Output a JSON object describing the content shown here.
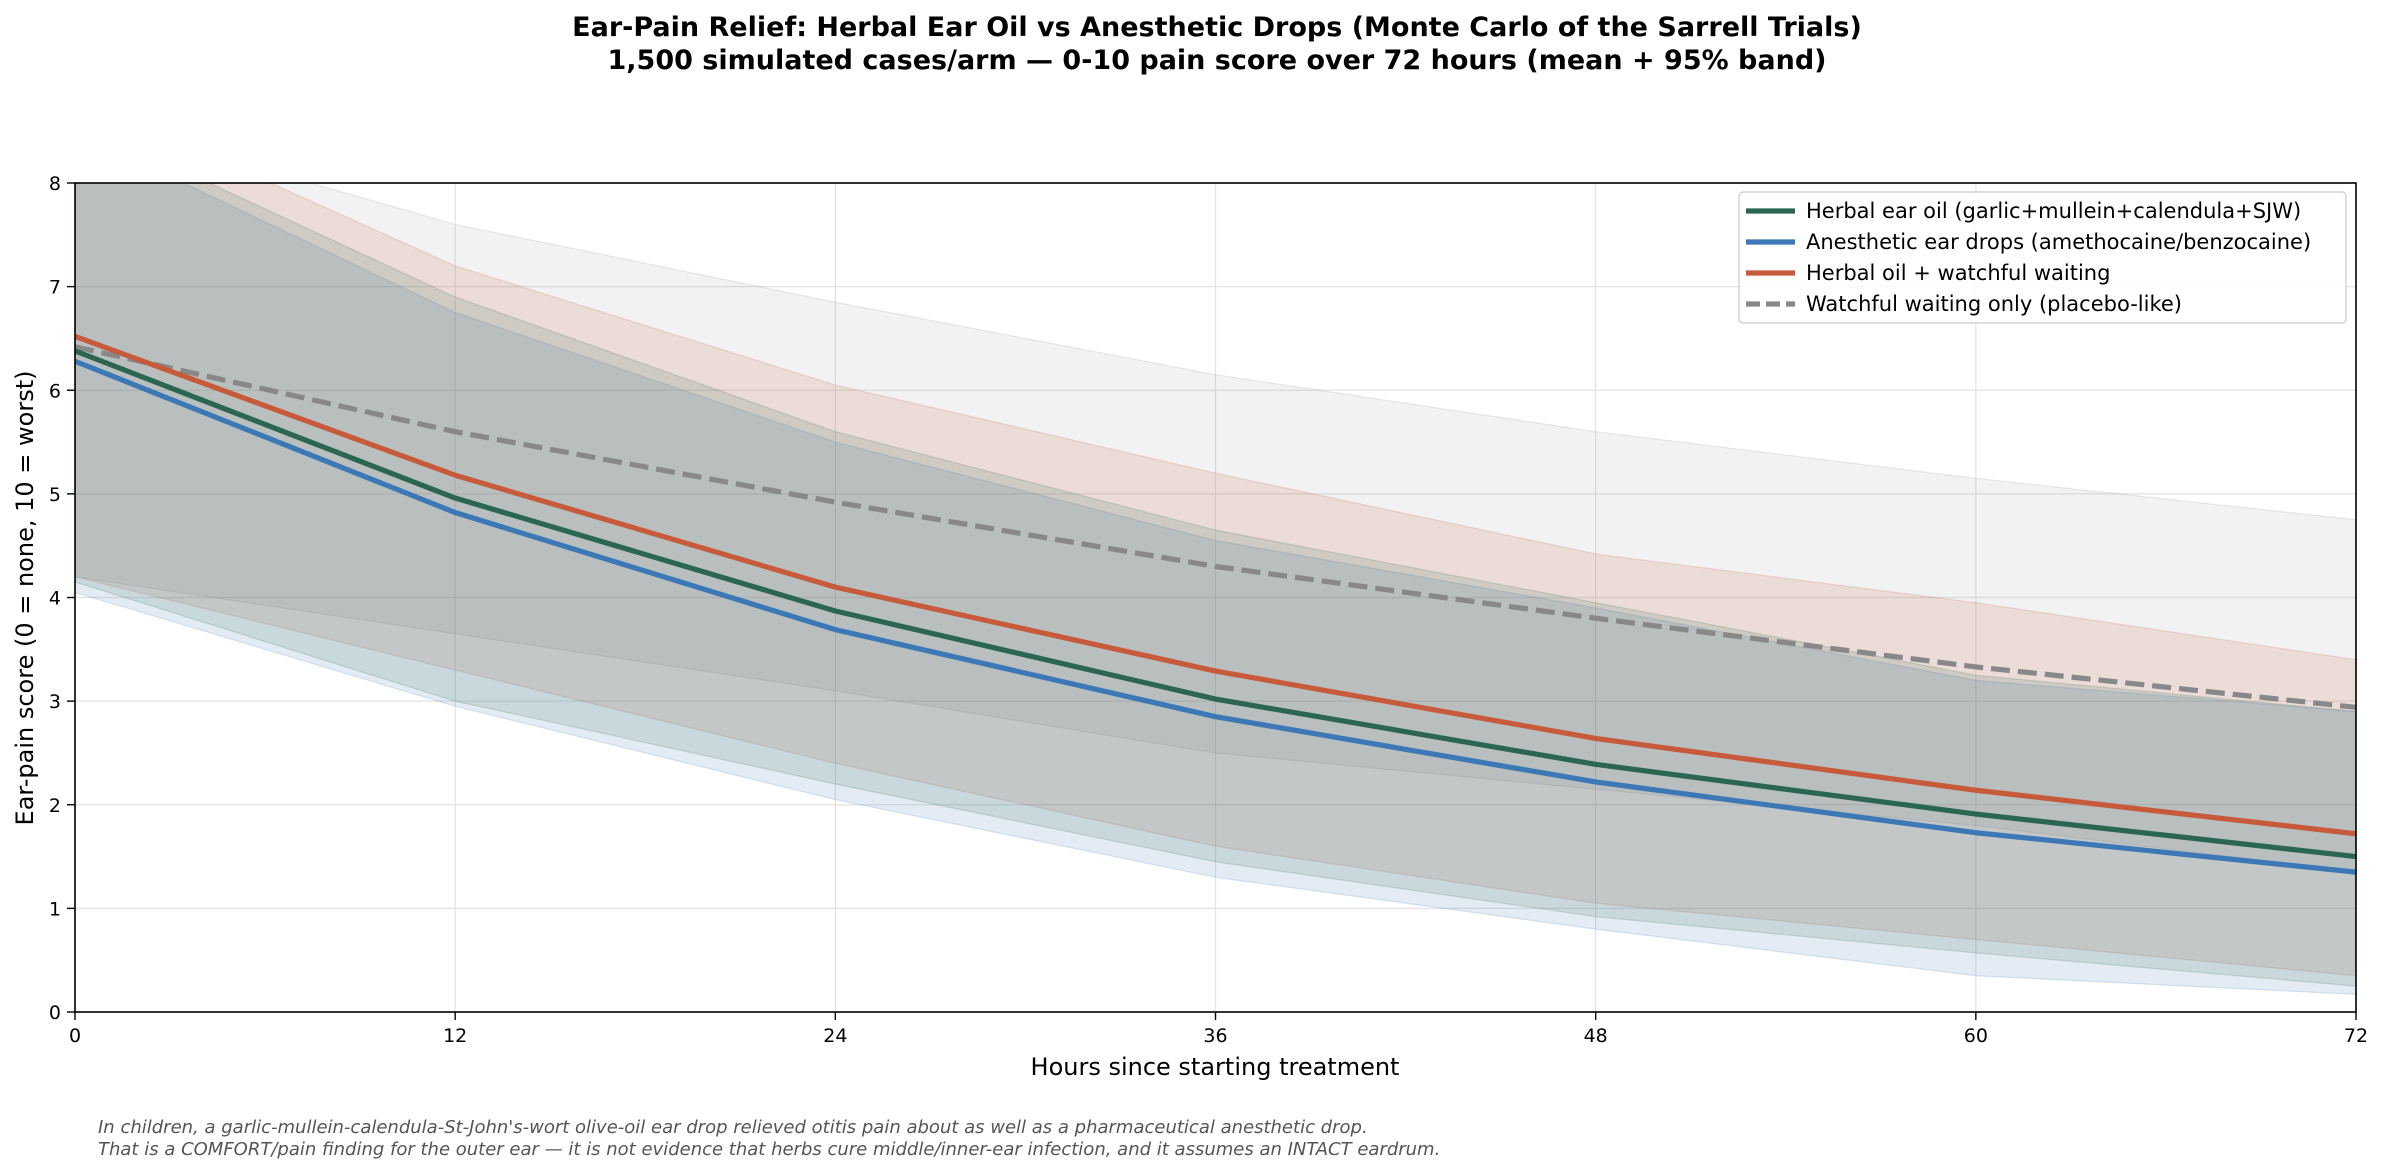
{
  "chart_data": {
    "type": "line",
    "title": "Ear-Pain Relief: Herbal Ear Oil vs Anesthetic Drops (Monte Carlo of the Sarrell Trials)",
    "subtitle": "1,500 simulated cases/arm — 0-10 pain score over 72 hours (mean + 95% band)",
    "xlabel": "Hours since starting treatment",
    "ylabel": "Ear-pain score (0 = none, 10 = worst)",
    "xlim": [
      0,
      72
    ],
    "ylim": [
      0,
      8
    ],
    "x_ticks": [
      0,
      12,
      24,
      36,
      48,
      60,
      72
    ],
    "y_ticks": [
      0,
      1,
      2,
      3,
      4,
      5,
      6,
      7,
      8
    ],
    "grid": true,
    "legend_position": "top-right",
    "x": [
      0,
      12,
      24,
      36,
      48,
      60,
      72
    ],
    "series": [
      {
        "name": "Herbal ear oil (garlic+mullein+calendula+SJW)",
        "color": "#2b6650",
        "dash": false,
        "values": [
          6.38,
          4.96,
          3.87,
          3.02,
          2.39,
          1.91,
          1.5
        ],
        "band_low": [
          4.15,
          3.0,
          2.2,
          1.45,
          0.92,
          0.57,
          0.25
        ],
        "band_high": [
          8.6,
          6.9,
          5.6,
          4.65,
          3.95,
          3.25,
          2.9
        ]
      },
      {
        "name": "Anesthetic ear drops (amethocaine/benzocaine)",
        "color": "#3b78b5",
        "dash": false,
        "values": [
          6.28,
          4.82,
          3.69,
          2.85,
          2.22,
          1.73,
          1.35
        ],
        "band_low": [
          4.05,
          2.95,
          2.05,
          1.3,
          0.8,
          0.35,
          0.17
        ],
        "band_high": [
          8.5,
          6.75,
          5.5,
          4.55,
          3.9,
          3.2,
          2.9
        ]
      },
      {
        "name": "Herbal oil + watchful waiting",
        "color": "#c65a3a",
        "dash": false,
        "values": [
          6.52,
          5.18,
          4.1,
          3.29,
          2.64,
          2.14,
          1.72
        ],
        "band_low": [
          4.2,
          3.3,
          2.4,
          1.6,
          1.05,
          0.7,
          0.35
        ],
        "band_high": [
          8.85,
          7.2,
          6.05,
          5.2,
          4.42,
          3.95,
          3.4
        ]
      },
      {
        "name": "Watchful waiting only (placebo-like)",
        "color": "#888888",
        "dash": true,
        "values": [
          6.42,
          5.6,
          4.92,
          4.3,
          3.8,
          3.33,
          2.94
        ],
        "band_low": [
          4.2,
          3.65,
          3.1,
          2.5,
          2.15,
          1.8,
          1.35
        ],
        "band_high": [
          8.65,
          7.6,
          6.85,
          6.15,
          5.6,
          5.15,
          4.75
        ]
      }
    ]
  },
  "notes": {
    "line1": "In children, a garlic-mullein-calendula-St-John's-wort olive-oil ear drop relieved otitis pain about as well as a pharmaceutical anesthetic drop.",
    "line2": "That is a COMFORT/pain finding for the outer ear — it is not evidence that herbs cure middle/inner-ear infection, and it assumes an INTACT eardrum."
  }
}
